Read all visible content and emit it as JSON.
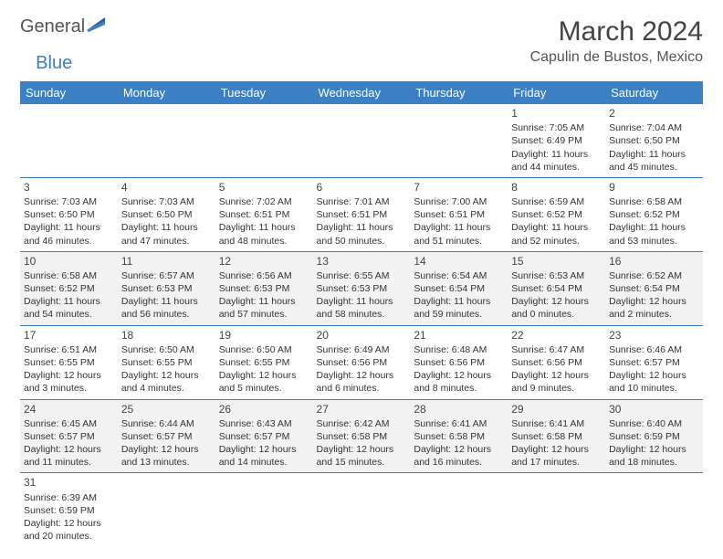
{
  "logo": {
    "part1": "General",
    "part2": "Blue"
  },
  "header": {
    "month_title": "March 2024",
    "location": "Capulin de Bustos, Mexico"
  },
  "colors": {
    "header_bg": "#3b7fc4",
    "row_alt_bg": "#f2f2f2",
    "border": "#3b7fc4"
  },
  "day_labels": [
    "Sunday",
    "Monday",
    "Tuesday",
    "Wednesday",
    "Thursday",
    "Friday",
    "Saturday"
  ],
  "weeks": [
    [
      null,
      null,
      null,
      null,
      null,
      {
        "n": "1",
        "sr": "Sunrise: 7:05 AM",
        "ss": "Sunset: 6:49 PM",
        "dl1": "Daylight: 11 hours",
        "dl2": "and 44 minutes."
      },
      {
        "n": "2",
        "sr": "Sunrise: 7:04 AM",
        "ss": "Sunset: 6:50 PM",
        "dl1": "Daylight: 11 hours",
        "dl2": "and 45 minutes."
      }
    ],
    [
      {
        "n": "3",
        "sr": "Sunrise: 7:03 AM",
        "ss": "Sunset: 6:50 PM",
        "dl1": "Daylight: 11 hours",
        "dl2": "and 46 minutes."
      },
      {
        "n": "4",
        "sr": "Sunrise: 7:03 AM",
        "ss": "Sunset: 6:50 PM",
        "dl1": "Daylight: 11 hours",
        "dl2": "and 47 minutes."
      },
      {
        "n": "5",
        "sr": "Sunrise: 7:02 AM",
        "ss": "Sunset: 6:51 PM",
        "dl1": "Daylight: 11 hours",
        "dl2": "and 48 minutes."
      },
      {
        "n": "6",
        "sr": "Sunrise: 7:01 AM",
        "ss": "Sunset: 6:51 PM",
        "dl1": "Daylight: 11 hours",
        "dl2": "and 50 minutes."
      },
      {
        "n": "7",
        "sr": "Sunrise: 7:00 AM",
        "ss": "Sunset: 6:51 PM",
        "dl1": "Daylight: 11 hours",
        "dl2": "and 51 minutes."
      },
      {
        "n": "8",
        "sr": "Sunrise: 6:59 AM",
        "ss": "Sunset: 6:52 PM",
        "dl1": "Daylight: 11 hours",
        "dl2": "and 52 minutes."
      },
      {
        "n": "9",
        "sr": "Sunrise: 6:58 AM",
        "ss": "Sunset: 6:52 PM",
        "dl1": "Daylight: 11 hours",
        "dl2": "and 53 minutes."
      }
    ],
    [
      {
        "n": "10",
        "sr": "Sunrise: 6:58 AM",
        "ss": "Sunset: 6:52 PM",
        "dl1": "Daylight: 11 hours",
        "dl2": "and 54 minutes."
      },
      {
        "n": "11",
        "sr": "Sunrise: 6:57 AM",
        "ss": "Sunset: 6:53 PM",
        "dl1": "Daylight: 11 hours",
        "dl2": "and 56 minutes."
      },
      {
        "n": "12",
        "sr": "Sunrise: 6:56 AM",
        "ss": "Sunset: 6:53 PM",
        "dl1": "Daylight: 11 hours",
        "dl2": "and 57 minutes."
      },
      {
        "n": "13",
        "sr": "Sunrise: 6:55 AM",
        "ss": "Sunset: 6:53 PM",
        "dl1": "Daylight: 11 hours",
        "dl2": "and 58 minutes."
      },
      {
        "n": "14",
        "sr": "Sunrise: 6:54 AM",
        "ss": "Sunset: 6:54 PM",
        "dl1": "Daylight: 11 hours",
        "dl2": "and 59 minutes."
      },
      {
        "n": "15",
        "sr": "Sunrise: 6:53 AM",
        "ss": "Sunset: 6:54 PM",
        "dl1": "Daylight: 12 hours",
        "dl2": "and 0 minutes."
      },
      {
        "n": "16",
        "sr": "Sunrise: 6:52 AM",
        "ss": "Sunset: 6:54 PM",
        "dl1": "Daylight: 12 hours",
        "dl2": "and 2 minutes."
      }
    ],
    [
      {
        "n": "17",
        "sr": "Sunrise: 6:51 AM",
        "ss": "Sunset: 6:55 PM",
        "dl1": "Daylight: 12 hours",
        "dl2": "and 3 minutes."
      },
      {
        "n": "18",
        "sr": "Sunrise: 6:50 AM",
        "ss": "Sunset: 6:55 PM",
        "dl1": "Daylight: 12 hours",
        "dl2": "and 4 minutes."
      },
      {
        "n": "19",
        "sr": "Sunrise: 6:50 AM",
        "ss": "Sunset: 6:55 PM",
        "dl1": "Daylight: 12 hours",
        "dl2": "and 5 minutes."
      },
      {
        "n": "20",
        "sr": "Sunrise: 6:49 AM",
        "ss": "Sunset: 6:56 PM",
        "dl1": "Daylight: 12 hours",
        "dl2": "and 6 minutes."
      },
      {
        "n": "21",
        "sr": "Sunrise: 6:48 AM",
        "ss": "Sunset: 6:56 PM",
        "dl1": "Daylight: 12 hours",
        "dl2": "and 8 minutes."
      },
      {
        "n": "22",
        "sr": "Sunrise: 6:47 AM",
        "ss": "Sunset: 6:56 PM",
        "dl1": "Daylight: 12 hours",
        "dl2": "and 9 minutes."
      },
      {
        "n": "23",
        "sr": "Sunrise: 6:46 AM",
        "ss": "Sunset: 6:57 PM",
        "dl1": "Daylight: 12 hours",
        "dl2": "and 10 minutes."
      }
    ],
    [
      {
        "n": "24",
        "sr": "Sunrise: 6:45 AM",
        "ss": "Sunset: 6:57 PM",
        "dl1": "Daylight: 12 hours",
        "dl2": "and 11 minutes."
      },
      {
        "n": "25",
        "sr": "Sunrise: 6:44 AM",
        "ss": "Sunset: 6:57 PM",
        "dl1": "Daylight: 12 hours",
        "dl2": "and 13 minutes."
      },
      {
        "n": "26",
        "sr": "Sunrise: 6:43 AM",
        "ss": "Sunset: 6:57 PM",
        "dl1": "Daylight: 12 hours",
        "dl2": "and 14 minutes."
      },
      {
        "n": "27",
        "sr": "Sunrise: 6:42 AM",
        "ss": "Sunset: 6:58 PM",
        "dl1": "Daylight: 12 hours",
        "dl2": "and 15 minutes."
      },
      {
        "n": "28",
        "sr": "Sunrise: 6:41 AM",
        "ss": "Sunset: 6:58 PM",
        "dl1": "Daylight: 12 hours",
        "dl2": "and 16 minutes."
      },
      {
        "n": "29",
        "sr": "Sunrise: 6:41 AM",
        "ss": "Sunset: 6:58 PM",
        "dl1": "Daylight: 12 hours",
        "dl2": "and 17 minutes."
      },
      {
        "n": "30",
        "sr": "Sunrise: 6:40 AM",
        "ss": "Sunset: 6:59 PM",
        "dl1": "Daylight: 12 hours",
        "dl2": "and 18 minutes."
      }
    ],
    [
      {
        "n": "31",
        "sr": "Sunrise: 6:39 AM",
        "ss": "Sunset: 6:59 PM",
        "dl1": "Daylight: 12 hours",
        "dl2": "and 20 minutes."
      },
      null,
      null,
      null,
      null,
      null,
      null
    ]
  ]
}
